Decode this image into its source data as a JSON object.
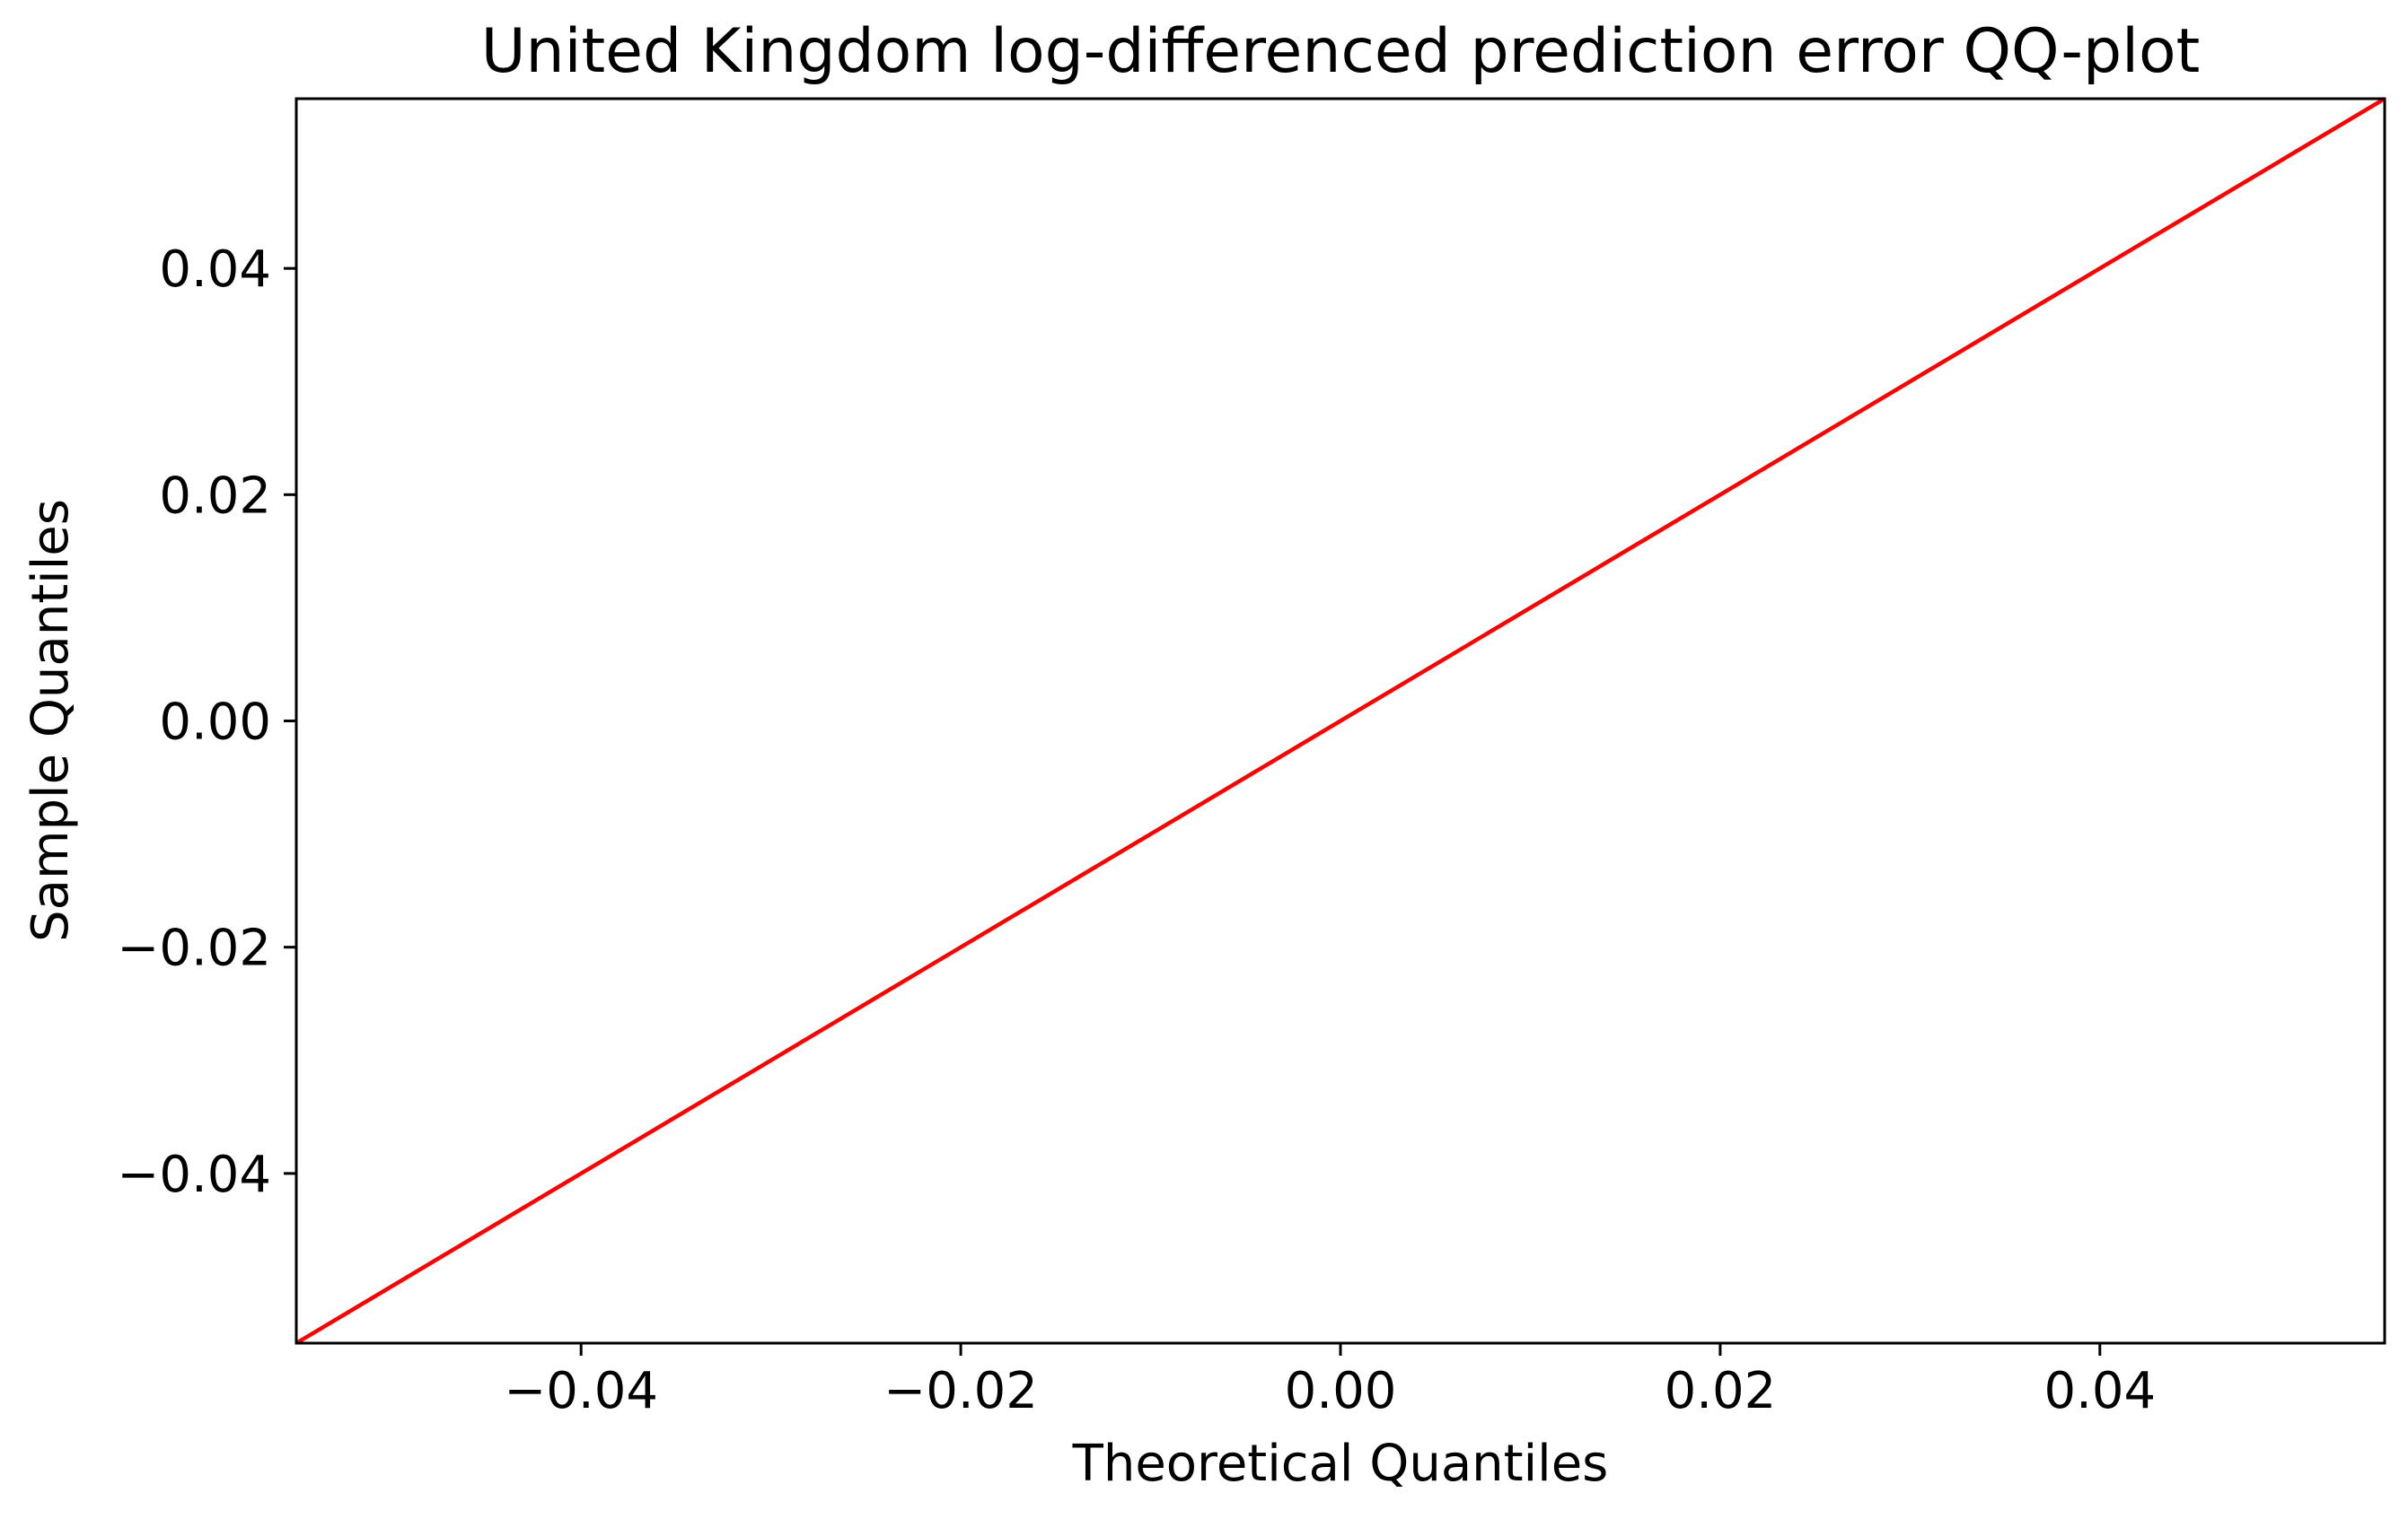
{
  "chart_data": {
    "type": "line",
    "title": "United Kingdom log-differenced prediction error QQ-plot",
    "xlabel": "Theoretical Quantiles",
    "ylabel": "Sample Quantiles",
    "xlim": [
      -0.055,
      0.055
    ],
    "ylim": [
      -0.055,
      0.055
    ],
    "xticks": [
      -0.04,
      -0.02,
      0.0,
      0.02,
      0.04
    ],
    "xtick_labels": [
      "−0.04",
      "−0.02",
      "0.00",
      "0.02",
      "0.04"
    ],
    "yticks": [
      -0.04,
      -0.02,
      0.0,
      0.02,
      0.04
    ],
    "ytick_labels": [
      "−0.04",
      "−0.02",
      "0.00",
      "0.02",
      "0.04"
    ],
    "grid": false,
    "series": [
      {
        "color": "#ff0000",
        "x": [
          -0.055,
          0.055
        ],
        "y": [
          -0.055,
          0.055
        ]
      }
    ]
  }
}
